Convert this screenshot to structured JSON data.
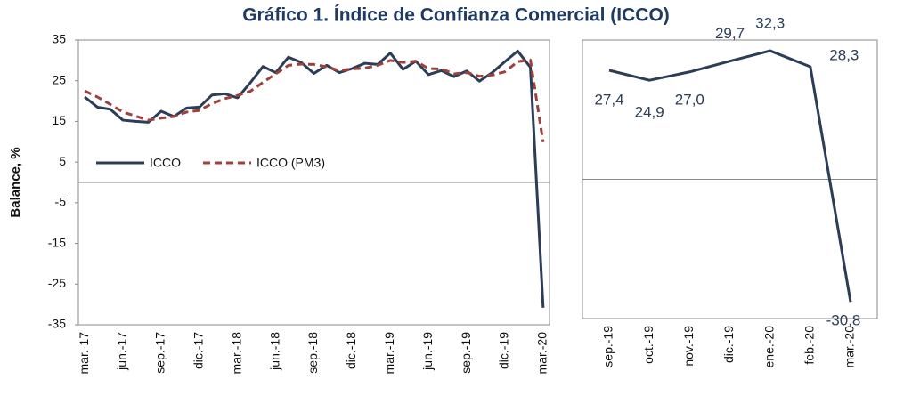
{
  "chart_data": [
    {
      "type": "line",
      "title": "Gráfico 1. Índice de Confianza Comercial (ICCO)",
      "ylabel": "Balance, %",
      "categories": [
        "mar.-17",
        null,
        null,
        "jun.-17",
        null,
        null,
        "sep.-17",
        null,
        null,
        "dic.-17",
        null,
        null,
        "mar.-18",
        null,
        null,
        "jun.-18",
        null,
        null,
        "sep.-18",
        null,
        null,
        "dic.-18",
        null,
        null,
        "mar.-19",
        null,
        null,
        "jun.-19",
        null,
        null,
        "sep.-19",
        null,
        null,
        "dic.-19",
        null,
        null,
        "mar.-20"
      ],
      "series": [
        {
          "name": "ICCO",
          "color": "#2b3d57",
          "dash": false,
          "values": [
            21,
            18.5,
            18,
            15.3,
            15,
            14.8,
            17.5,
            16.2,
            18.3,
            18.5,
            21.5,
            21.8,
            20.8,
            24.5,
            28.5,
            27,
            30.8,
            29.5,
            26.8,
            28.8,
            27,
            28,
            29.3,
            29,
            31.8,
            27.8,
            29.8,
            26.5,
            27.5,
            26,
            27.4,
            24.9,
            27.0,
            29.7,
            32.3,
            28.3,
            -30.8
          ]
        },
        {
          "name": "ICCO (PM3)",
          "color": "#a0403c",
          "dash": true,
          "values": [
            22.5,
            21,
            19.2,
            17.3,
            16.3,
            15.3,
            15.8,
            16.2,
            17.3,
            17.7,
            19.4,
            20.6,
            21.4,
            22.4,
            24.6,
            26.7,
            28.8,
            29.1,
            29,
            28.4,
            27.5,
            27.9,
            28.1,
            28.8,
            30,
            29.5,
            29.8,
            28,
            27.9,
            26.7,
            27,
            26.1,
            26.4,
            27.2,
            29.7,
            30.1,
            9.9
          ]
        }
      ],
      "ylim": [
        -35,
        35
      ],
      "yticks": [
        35,
        25,
        15,
        5,
        -5,
        -15,
        -25,
        -35
      ]
    },
    {
      "type": "line",
      "categories": [
        "sep.-19",
        "oct.-19",
        "nov.-19",
        "dic.-19",
        "ene.-20",
        "feb.-20",
        "mar.-20"
      ],
      "values": [
        27.4,
        24.9,
        27.0,
        29.7,
        32.3,
        28.3,
        -30.8
      ],
      "value_labels": [
        "27,4",
        "24,9",
        "27,0",
        "29,7",
        "32,3",
        "28,3",
        "-30,8"
      ],
      "color": "#2b3d57",
      "ylim": [
        -35,
        35
      ]
    }
  ]
}
